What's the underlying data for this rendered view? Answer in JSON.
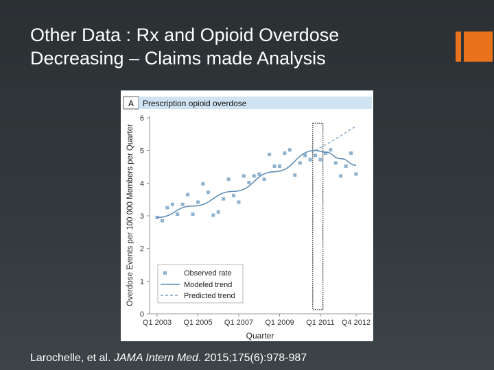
{
  "slide": {
    "title_line1": "Other Data : Rx and Opioid Overdose",
    "title_line2": "Decreasing – Claims made Analysis",
    "citation_authors": "Larochelle, et al. ",
    "citation_journal": "JAMA Intern Med",
    "citation_rest": ". 2015;175(6):978-987",
    "accent_color": "#e8731c"
  },
  "chart_data": {
    "type": "scatter",
    "panel_label": "A",
    "title": "Prescription opioid overdose",
    "xlabel": "Quarter",
    "ylabel": "Overdose Events per 100 000 Members per Quarter",
    "ylim": [
      0,
      6
    ],
    "yticks": [
      "0",
      "1",
      "2",
      "3",
      "4",
      "5",
      "6"
    ],
    "xlim": [
      1,
      40
    ],
    "xticks": [
      {
        "q": 1,
        "label": "Q1 2003"
      },
      {
        "q": 9,
        "label": "Q1 2005"
      },
      {
        "q": 17,
        "label": "Q1 2007"
      },
      {
        "q": 25,
        "label": "Q1 2009"
      },
      {
        "q": 33,
        "label": "Q1 2011"
      },
      {
        "q": 40,
        "label": "Q4 2012"
      }
    ],
    "intervention_quarter": 32,
    "series": [
      {
        "name": "Observed rate",
        "style": "points",
        "points": [
          [
            1,
            2.95
          ],
          [
            2,
            2.85
          ],
          [
            3,
            3.25
          ],
          [
            4,
            3.35
          ],
          [
            5,
            3.05
          ],
          [
            6,
            3.35
          ],
          [
            7,
            3.65
          ],
          [
            8,
            3.05
          ],
          [
            9,
            3.42
          ],
          [
            10,
            3.98
          ],
          [
            11,
            3.72
          ],
          [
            12,
            3.02
          ],
          [
            13,
            3.12
          ],
          [
            14,
            3.52
          ],
          [
            15,
            4.12
          ],
          [
            16,
            3.62
          ],
          [
            17,
            3.42
          ],
          [
            18,
            4.22
          ],
          [
            19,
            4.02
          ],
          [
            20,
            4.22
          ],
          [
            21,
            4.28
          ],
          [
            22,
            4.12
          ],
          [
            23,
            4.88
          ],
          [
            24,
            4.52
          ],
          [
            25,
            4.52
          ],
          [
            26,
            4.92
          ],
          [
            27,
            5.02
          ],
          [
            28,
            4.25
          ],
          [
            29,
            4.62
          ],
          [
            30,
            4.85
          ],
          [
            31,
            4.72
          ],
          [
            32,
            4.85
          ],
          [
            33,
            4.72
          ],
          [
            34,
            4.92
          ],
          [
            35,
            5.02
          ],
          [
            36,
            4.62
          ],
          [
            37,
            4.22
          ],
          [
            38,
            4.52
          ],
          [
            39,
            4.92
          ],
          [
            40,
            4.28
          ]
        ]
      },
      {
        "name": "Modeled trend",
        "style": "solid",
        "points": [
          [
            1,
            2.95
          ],
          [
            8,
            3.3
          ],
          [
            16,
            3.75
          ],
          [
            24,
            4.35
          ],
          [
            32,
            5.0
          ],
          [
            34,
            4.95
          ],
          [
            37,
            4.75
          ],
          [
            40,
            4.55
          ]
        ]
      },
      {
        "name": "Predicted trend",
        "style": "dashed",
        "points": [
          [
            32,
            5.0
          ],
          [
            36,
            5.35
          ],
          [
            40,
            5.75
          ]
        ]
      }
    ],
    "legend": {
      "position": "bottom-left",
      "entries": [
        "Observed rate",
        "Modeled trend",
        "Predicted trend"
      ]
    }
  }
}
